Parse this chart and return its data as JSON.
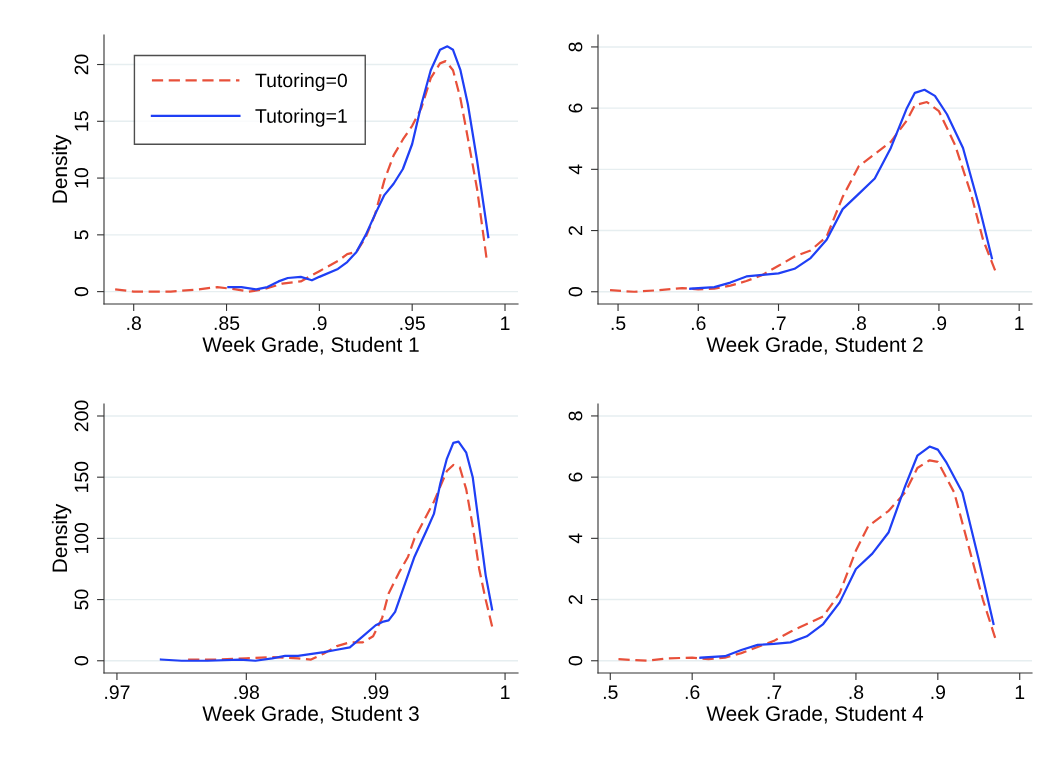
{
  "chart_data": [
    {
      "type": "line",
      "xlabel": "Week Grade, Student 1",
      "ylabel": "Density",
      "xlim": [
        0.784,
        1.007
      ],
      "ylim": [
        -1.09,
        22.6
      ],
      "xticks": [
        {
          "value": 0.8,
          "label": ".8"
        },
        {
          "value": 0.85,
          "label": ".85"
        },
        {
          "value": 0.9,
          "label": ".9"
        },
        {
          "value": 0.95,
          "label": ".95"
        },
        1
      ],
      "yticks": [
        0,
        5,
        10,
        15,
        20
      ],
      "grid": "y",
      "legend": "top left",
      "marker": "none",
      "series": [
        {
          "name": "Tutoring=0",
          "color": "#e8503a",
          "line_style": "dashed",
          "x": [
            0.79,
            0.8,
            0.82,
            0.835,
            0.845,
            0.855,
            0.862,
            0.87,
            0.88,
            0.89,
            0.9,
            0.91,
            0.915,
            0.92,
            0.925,
            0.93,
            0.935,
            0.94,
            0.945,
            0.95,
            0.955,
            0.96,
            0.965,
            0.968,
            0.972,
            0.976,
            0.98,
            0.985,
            0.99
          ],
          "values": [
            0.2,
            0.0,
            0.0,
            0.2,
            0.4,
            0.2,
            0.0,
            0.2,
            0.7,
            0.9,
            1.8,
            2.7,
            3.3,
            3.5,
            4.8,
            6.8,
            9.8,
            12.0,
            13.4,
            14.6,
            16.2,
            18.8,
            20.1,
            20.3,
            19.5,
            17.0,
            13.5,
            9.0,
            3.0
          ]
        },
        {
          "name": "Tutoring=1",
          "color": "#1f3ff5",
          "line_style": "solid",
          "x": [
            0.851,
            0.858,
            0.866,
            0.872,
            0.878,
            0.883,
            0.89,
            0.896,
            0.9,
            0.91,
            0.915,
            0.92,
            0.925,
            0.93,
            0.935,
            0.94,
            0.945,
            0.95,
            0.955,
            0.96,
            0.965,
            0.969,
            0.972,
            0.976,
            0.98,
            0.985,
            0.991
          ],
          "values": [
            0.4,
            0.4,
            0.2,
            0.4,
            0.9,
            1.2,
            1.3,
            1.0,
            1.3,
            2.0,
            2.6,
            3.5,
            5.0,
            6.8,
            8.5,
            9.5,
            10.8,
            13.0,
            16.5,
            19.5,
            21.3,
            21.6,
            21.3,
            19.5,
            16.5,
            11.5,
            4.8
          ]
        }
      ]
    },
    {
      "type": "line",
      "xlabel": "Week Grade, Student 2",
      "xlim": [
        0.475,
        1.016
      ],
      "ylim": [
        -0.4,
        8.39
      ],
      "xticks": [
        {
          "value": 0.5,
          "label": ".5"
        },
        {
          "value": 0.6,
          "label": ".6"
        },
        {
          "value": 0.7,
          "label": ".7"
        },
        {
          "value": 0.8,
          "label": ".8"
        },
        {
          "value": 0.9,
          "label": ".9"
        },
        1
      ],
      "yticks": [
        0,
        2,
        4,
        6,
        8
      ],
      "grid": "y",
      "marker": "none",
      "series": [
        {
          "color": "#e8503a",
          "line_style": "dashed",
          "x": [
            0.49,
            0.52,
            0.55,
            0.58,
            0.6,
            0.62,
            0.64,
            0.66,
            0.68,
            0.7,
            0.72,
            0.74,
            0.76,
            0.78,
            0.8,
            0.82,
            0.84,
            0.86,
            0.87,
            0.885,
            0.9,
            0.92,
            0.94,
            0.955,
            0.97
          ],
          "values": [
            0.05,
            0.0,
            0.05,
            0.12,
            0.08,
            0.1,
            0.2,
            0.35,
            0.55,
            0.85,
            1.15,
            1.35,
            1.8,
            3.1,
            4.1,
            4.5,
            4.9,
            5.6,
            6.1,
            6.2,
            5.9,
            4.8,
            3.2,
            1.7,
            0.7
          ]
        },
        {
          "color": "#1f3ff5",
          "line_style": "solid",
          "x": [
            0.59,
            0.62,
            0.64,
            0.66,
            0.68,
            0.7,
            0.72,
            0.74,
            0.76,
            0.78,
            0.8,
            0.82,
            0.84,
            0.86,
            0.87,
            0.882,
            0.895,
            0.91,
            0.93,
            0.95,
            0.966
          ],
          "values": [
            0.1,
            0.15,
            0.3,
            0.5,
            0.55,
            0.6,
            0.75,
            1.1,
            1.7,
            2.7,
            3.2,
            3.7,
            4.7,
            6.0,
            6.5,
            6.6,
            6.4,
            5.8,
            4.7,
            2.8,
            1.1
          ]
        }
      ]
    },
    {
      "type": "line",
      "xlabel": "Week Grade, Student 3",
      "ylabel": "Density",
      "xlim": [
        0.969,
        1.001
      ],
      "ylim": [
        -10,
        209.8
      ],
      "xticks": [
        {
          "value": 0.97,
          "label": ".97"
        },
        {
          "value": 0.98,
          "label": ".98"
        },
        {
          "value": 0.99,
          "label": ".99"
        },
        1
      ],
      "yticks": [
        0,
        50,
        100,
        150,
        200
      ],
      "grid": "y",
      "marker": "none",
      "series": [
        {
          "color": "#e8503a",
          "line_style": "dashed",
          "x": [
            0.9755,
            0.978,
            0.98,
            0.982,
            0.984,
            0.985,
            0.986,
            0.987,
            0.988,
            0.989,
            0.9898,
            0.9905,
            0.991,
            0.9918,
            0.9925,
            0.993,
            0.9945,
            0.9955,
            0.996,
            0.9965,
            0.997,
            0.9975,
            0.998,
            0.9985,
            0.999
          ],
          "values": [
            1,
            1,
            2,
            3,
            2,
            1,
            6,
            12,
            15,
            15,
            20,
            35,
            55,
            72,
            85,
            100,
            130,
            155,
            160,
            158,
            140,
            110,
            75,
            50,
            28
          ]
        },
        {
          "color": "#1f3ff5",
          "line_style": "solid",
          "x": [
            0.9734,
            0.975,
            0.977,
            0.9795,
            0.9807,
            0.982,
            0.983,
            0.984,
            0.986,
            0.987,
            0.988,
            0.989,
            0.99,
            0.9906,
            0.991,
            0.9915,
            0.992,
            0.993,
            0.994,
            0.9945,
            0.995,
            0.9955,
            0.996,
            0.9964,
            0.997,
            0.9975,
            0.998,
            0.9985,
            0.999
          ],
          "values": [
            1,
            0,
            0,
            1,
            0,
            2,
            4,
            4,
            7,
            9,
            11,
            20,
            29,
            32,
            33,
            40,
            55,
            85,
            108,
            120,
            145,
            165,
            178,
            179,
            170,
            150,
            110,
            70,
            42
          ]
        }
      ]
    },
    {
      "type": "line",
      "xlabel": "Week Grade, Student 4",
      "xlim": [
        0.485,
        1.015
      ],
      "ylim": [
        -0.4,
        8.39
      ],
      "xticks": [
        {
          "value": 0.5,
          "label": ".5"
        },
        {
          "value": 0.6,
          "label": ".6"
        },
        {
          "value": 0.7,
          "label": ".7"
        },
        {
          "value": 0.8,
          "label": ".8"
        },
        {
          "value": 0.9,
          "label": ".9"
        },
        1
      ],
      "yticks": [
        0,
        2,
        4,
        6,
        8
      ],
      "grid": "y",
      "marker": "none",
      "series": [
        {
          "color": "#e8503a",
          "line_style": "dashed",
          "x": [
            0.51,
            0.545,
            0.57,
            0.6,
            0.62,
            0.64,
            0.66,
            0.68,
            0.7,
            0.72,
            0.74,
            0.76,
            0.78,
            0.8,
            0.815,
            0.84,
            0.86,
            0.875,
            0.89,
            0.9,
            0.92,
            0.94,
            0.955,
            0.97
          ],
          "values": [
            0.05,
            0.0,
            0.08,
            0.1,
            0.05,
            0.1,
            0.25,
            0.45,
            0.65,
            0.95,
            1.2,
            1.45,
            2.2,
            3.6,
            4.4,
            4.9,
            5.5,
            6.3,
            6.55,
            6.5,
            5.5,
            3.5,
            2.0,
            0.75
          ]
        },
        {
          "color": "#1f3ff5",
          "line_style": "solid",
          "x": [
            0.61,
            0.64,
            0.66,
            0.68,
            0.7,
            0.72,
            0.74,
            0.76,
            0.78,
            0.8,
            0.82,
            0.84,
            0.86,
            0.875,
            0.89,
            0.9,
            0.91,
            0.93,
            0.95,
            0.968
          ],
          "values": [
            0.1,
            0.15,
            0.35,
            0.52,
            0.55,
            0.6,
            0.8,
            1.2,
            1.9,
            3.0,
            3.5,
            4.2,
            5.7,
            6.7,
            7.0,
            6.9,
            6.5,
            5.5,
            3.3,
            1.2
          ]
        }
      ]
    }
  ]
}
